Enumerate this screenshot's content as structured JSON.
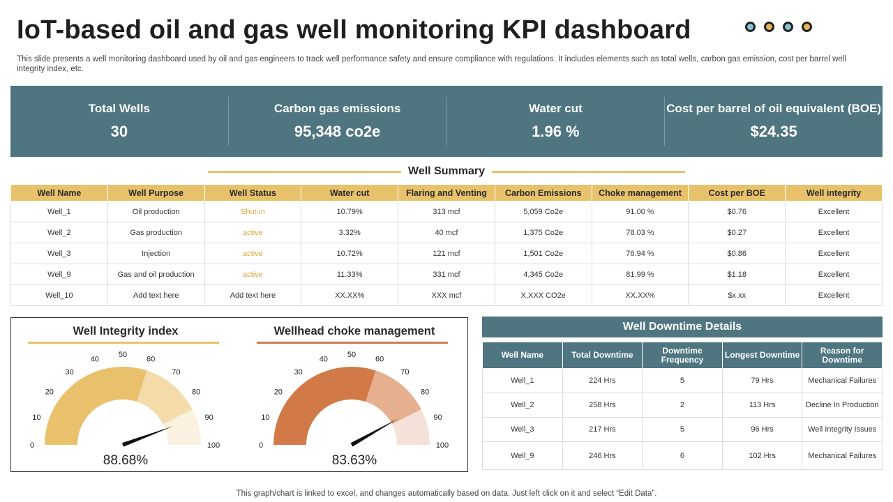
{
  "title": "IoT-based oil and gas well monitoring KPI dashboard",
  "subtitle": "This slide presents a well monitoring dashboard used by oil and gas engineers to track well performance safety and ensure compliance with regulations. It includes elements such as total wells, carbon gas emission, cost per barrel well integrity index, etc.",
  "colors": {
    "teal": "#4e7580",
    "gold": "#e8c26a",
    "orange": "#d27a47",
    "dot1": "#88c3d0",
    "dot2": "#e8b45a",
    "dot3": "#88c3d0",
    "dot4": "#e8b45a"
  },
  "kpis": [
    {
      "label": "Total Wells",
      "value": "30"
    },
    {
      "label": "Carbon gas emissions",
      "value": "95,348 co2e"
    },
    {
      "label": "Water cut",
      "value": "1.96 %"
    },
    {
      "label": "Cost per barrel of oil equivalent (BOE)",
      "value": "$24.35"
    }
  ],
  "summary": {
    "heading": "Well Summary",
    "headers": [
      "Well Name",
      "Well Purpose",
      "Well Status",
      "Water cut",
      "Flaring and Venting",
      "Carbon Emissions",
      "Choke management",
      "Cost per BOE",
      "Well integrity"
    ],
    "rows": [
      [
        "Well_1",
        "Oil production",
        "Shut-in",
        "10.79%",
        "313 mcf",
        "5,059 Co2e",
        "91.00 %",
        "$0.76",
        "Excellent"
      ],
      [
        "Well_2",
        "Gas production",
        "active",
        "3.32%",
        "40 mcf",
        "1,375 Co2e",
        "78.03 %",
        "$0.27",
        "Excellent"
      ],
      [
        "Well_3",
        "Injection",
        "active",
        "10.72%",
        "121 mcf",
        "1,501 Co2e",
        "76.94 %",
        "$0.86",
        "Excellent"
      ],
      [
        "Well_9",
        "Gas and oil production",
        "active",
        "11.33%",
        "331 mcf",
        "4,345 Co2e",
        "81.99 %",
        "$1.18",
        "Excellent"
      ],
      [
        "Well_10",
        "Add text here",
        "Add text here",
        "XX.XX%",
        "XXX mcf",
        "X,XXX CO2e",
        "XX.XX%",
        "$x.xx",
        "Excellent"
      ]
    ]
  },
  "chart_data": [
    {
      "type": "gauge",
      "title": "Well Integrity index",
      "value": 88.68,
      "value_label": "88.68%",
      "min": 0,
      "max": 100,
      "ticks": [
        "0",
        "10",
        "20",
        "30",
        "40",
        "50",
        "60",
        "70",
        "80",
        "90",
        "100"
      ],
      "bands": [
        {
          "from": 0,
          "to": 60,
          "color": "#e9c16c"
        },
        {
          "from": 60,
          "to": 85,
          "color": "#f3dcaa"
        },
        {
          "from": 85,
          "to": 100,
          "color": "#fbf1e0"
        }
      ],
      "underline_color": "#e8c26a"
    },
    {
      "type": "gauge",
      "title": "Wellhead choke management",
      "value": 83.63,
      "value_label": "83.63%",
      "min": 0,
      "max": 100,
      "ticks": [
        "0",
        "10",
        "20",
        "30",
        "40",
        "50",
        "60",
        "70",
        "80",
        "90",
        "100"
      ],
      "bands": [
        {
          "from": 0,
          "to": 60,
          "color": "#d27a47"
        },
        {
          "from": 60,
          "to": 85,
          "color": "#e6b08f"
        },
        {
          "from": 85,
          "to": 100,
          "color": "#f4e2d8"
        }
      ],
      "underline_color": "#d27a47"
    }
  ],
  "downtime": {
    "heading": "Well Downtime Details",
    "headers": [
      "Well Name",
      "Total Downtime",
      "Downtime Frequency",
      "Longest Downtime",
      "Reason for Downtime"
    ],
    "rows": [
      [
        "Well_1",
        "224 Hrs",
        "5",
        "79 Hrs",
        "Mechanical Failures"
      ],
      [
        "Well_2",
        "258 Hrs",
        "2",
        "113 Hrs",
        "Decline In Production"
      ],
      [
        "Well_3",
        "217 Hrs",
        "5",
        "96 Hrs",
        "Well Integrity Issues"
      ],
      [
        "Well_9",
        "246 Hrs",
        "6",
        "102 Hrs",
        "Mechanical Failures"
      ]
    ]
  },
  "footer": "This graph/chart is linked to excel,  and changes automatically based on data. Just left click on it and select “Edit Data”."
}
